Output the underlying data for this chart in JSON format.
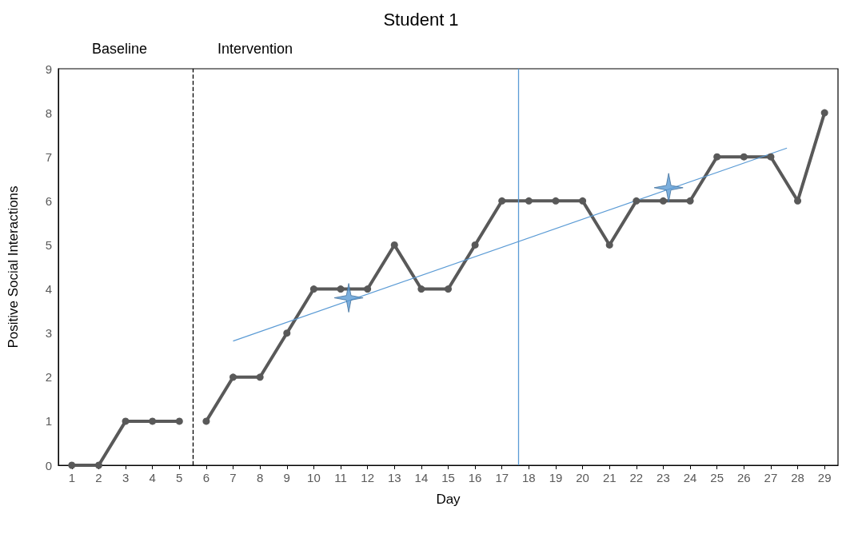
{
  "chart_data": {
    "type": "line",
    "title": "Student 1",
    "xlabel": "Day",
    "ylabel": "Positive Social Interactions",
    "annotations": [
      "Baseline",
      "Intervention"
    ],
    "x": [
      1,
      2,
      3,
      4,
      5,
      6,
      7,
      8,
      9,
      10,
      11,
      12,
      13,
      14,
      15,
      16,
      17,
      18,
      19,
      20,
      21,
      22,
      23,
      24,
      25,
      26,
      27,
      28,
      29
    ],
    "series": [
      {
        "color": "#595959",
        "values": [
          0,
          0,
          1,
          1,
          1,
          null,
          null,
          null,
          null,
          null,
          null,
          null,
          null,
          null,
          null,
          null,
          null,
          null,
          null,
          null,
          null,
          null,
          null,
          null,
          null,
          null,
          null,
          null,
          null
        ]
      },
      {
        "color": "#595959",
        "values": [
          null,
          null,
          null,
          null,
          null,
          1,
          2,
          2,
          3,
          4,
          4,
          4,
          5,
          4,
          4,
          5,
          6,
          6,
          6,
          6,
          5,
          6,
          6,
          6,
          7,
          7,
          7,
          6,
          8
        ]
      },
      {
        "type": "line",
        "color": "#5b9bd5",
        "marker": "none",
        "x": [
          7,
          27.6
        ],
        "values": [
          2.82,
          7.2
        ]
      },
      {
        "type": "scatter",
        "color": "#5b9bd5",
        "marker": "star",
        "x": [
          11.3,
          23.2
        ],
        "values": [
          3.8,
          6.3
        ]
      }
    ],
    "ref_lines": [
      {
        "axis": "x",
        "value": 5.5,
        "line_style": "dashed",
        "color": "#000000"
      },
      {
        "axis": "x",
        "value": 17.6,
        "color": "#5b9bd5"
      }
    ],
    "xlim": [
      0.5,
      29.5
    ],
    "xticks": [
      1,
      2,
      3,
      4,
      5,
      6,
      7,
      8,
      9,
      10,
      11,
      12,
      13,
      14,
      15,
      16,
      17,
      18,
      19,
      20,
      21,
      22,
      23,
      24,
      25,
      26,
      27,
      28,
      29
    ],
    "ylim": [
      0,
      9
    ],
    "yticks": [
      0,
      1,
      2,
      3,
      4,
      5,
      6,
      7,
      8,
      9
    ],
    "marker": "circle",
    "line_style": "solid",
    "grid": false
  }
}
